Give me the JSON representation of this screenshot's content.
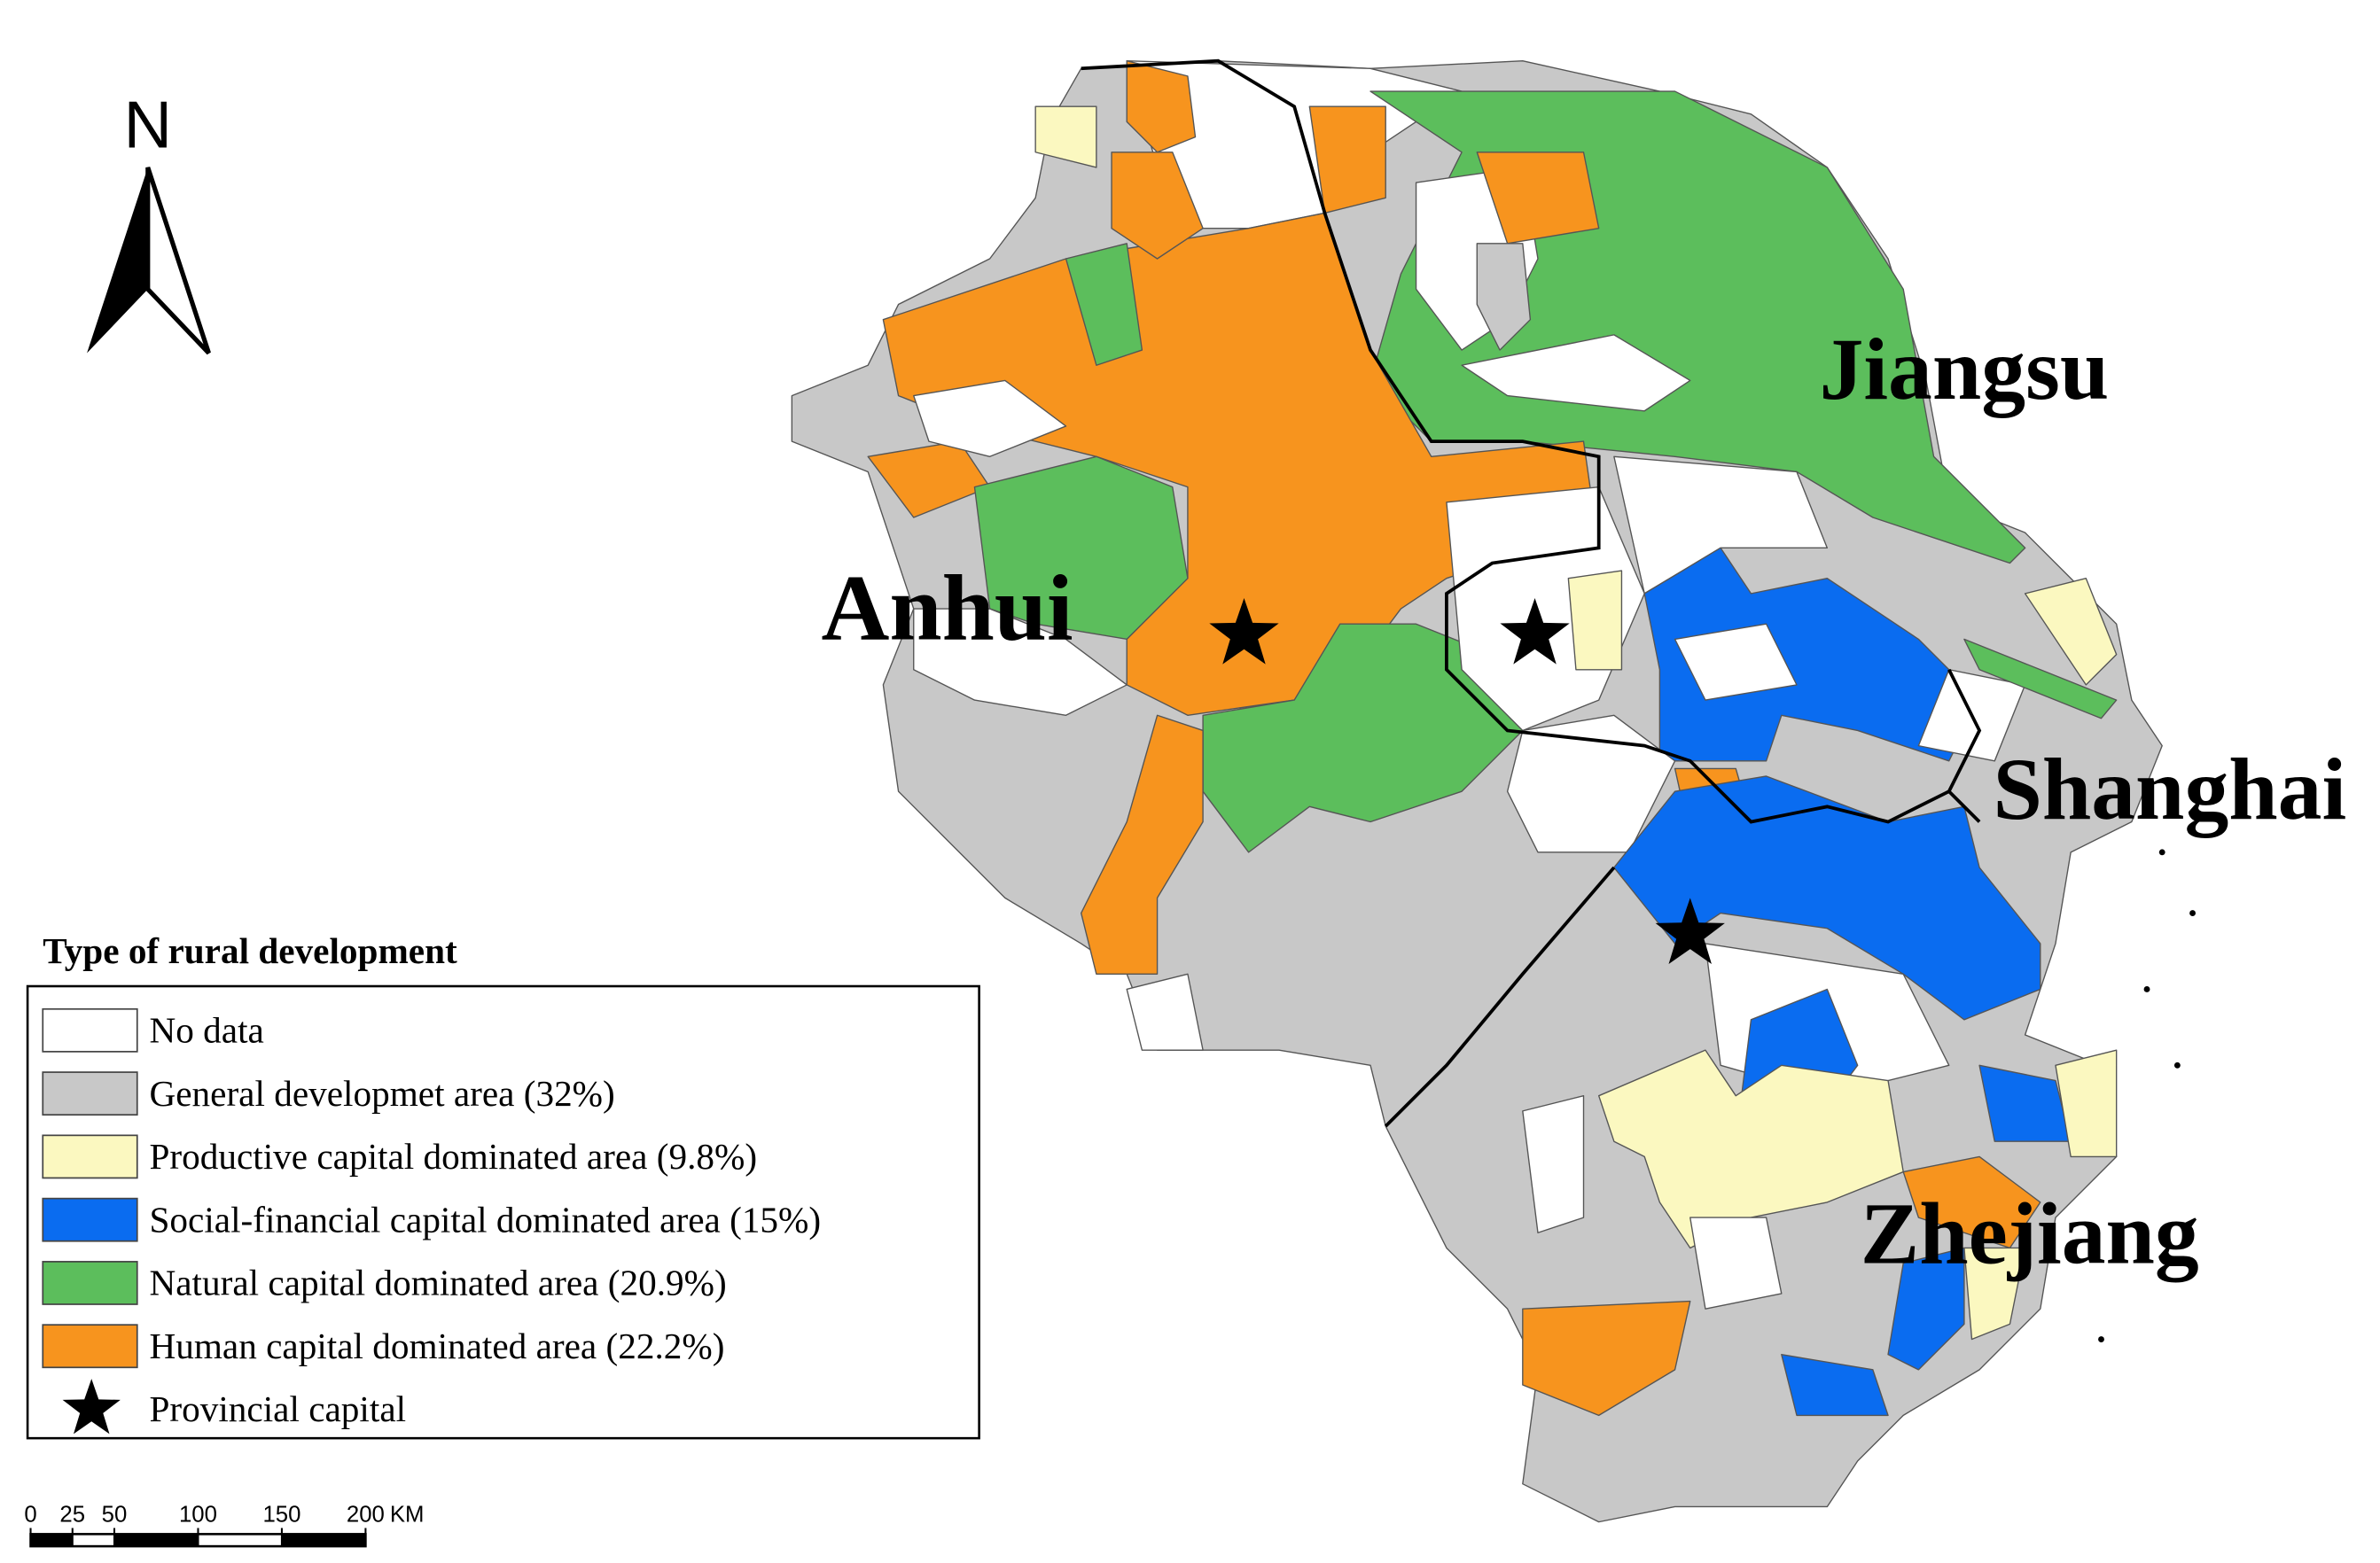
{
  "north_arrow": "N",
  "provinces": [
    {
      "label": "Anhui"
    },
    {
      "label": "Jiangsu"
    },
    {
      "label": "Shanghai"
    },
    {
      "label": "Zhejiang"
    }
  ],
  "legend": {
    "title": "Type of rural development",
    "items": [
      {
        "label": "No data",
        "color": "#ffffff"
      },
      {
        "label": "General developmet area (32%)",
        "color": "#c8c8c8"
      },
      {
        "label": "Productive capital dominated area (9.8%)",
        "color": "#fbf8c0"
      },
      {
        "label": "Social-financial capital dominated area (15%)",
        "color": "#0a6cf0"
      },
      {
        "label": "Natural capital dominated area (20.9%)",
        "color": "#5cbe5c"
      },
      {
        "label": "Human capital dominated area (22.2%)",
        "color": "#f7941e"
      },
      {
        "label": "Provincial capital",
        "symbol": "star",
        "color": "#000000"
      }
    ]
  },
  "scale_bar": {
    "ticks": [
      0,
      25,
      50,
      100,
      150,
      200
    ],
    "unit": "KM"
  }
}
